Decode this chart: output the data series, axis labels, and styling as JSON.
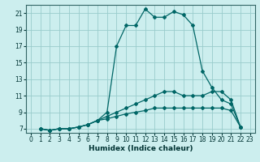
{
  "xlabel": "Humidex (Indice chaleur)",
  "background_color": "#cceeee",
  "grid_color": "#99cccc",
  "line_color": "#006666",
  "xlim": [
    -0.5,
    23.5
  ],
  "ylim": [
    6.5,
    22.0
  ],
  "xticks": [
    0,
    1,
    2,
    3,
    4,
    5,
    6,
    7,
    8,
    9,
    10,
    11,
    12,
    13,
    14,
    15,
    16,
    17,
    18,
    19,
    20,
    21,
    22,
    23
  ],
  "yticks": [
    7,
    9,
    11,
    13,
    15,
    17,
    19,
    21
  ],
  "series": [
    {
      "x": [
        1,
        2,
        3,
        4,
        5,
        6,
        7,
        8,
        9,
        10,
        11,
        12,
        13,
        14,
        15,
        16,
        17,
        18,
        19,
        20,
        21,
        22
      ],
      "y": [
        7,
        6.8,
        7,
        7,
        7.2,
        7.5,
        8.0,
        9.0,
        17.0,
        19.5,
        19.5,
        21.5,
        20.5,
        20.5,
        21.2,
        20.8,
        19.5,
        14.0,
        12.0,
        10.5,
        10.0,
        7.2
      ]
    },
    {
      "x": [
        1,
        2,
        3,
        4,
        5,
        6,
        7,
        8,
        9,
        10,
        11,
        12,
        13,
        14,
        15,
        16,
        17,
        18,
        19,
        20,
        21,
        22
      ],
      "y": [
        7,
        6.8,
        7,
        7,
        7.2,
        7.5,
        8.0,
        8.5,
        9.0,
        9.5,
        10.0,
        10.5,
        11.0,
        11.5,
        11.5,
        11.0,
        11.0,
        11.0,
        11.5,
        11.5,
        10.5,
        7.2
      ]
    },
    {
      "x": [
        1,
        2,
        3,
        4,
        5,
        6,
        7,
        8,
        9,
        10,
        11,
        12,
        13,
        14,
        15,
        16,
        17,
        18,
        19,
        20,
        21,
        22
      ],
      "y": [
        7,
        6.8,
        7,
        7,
        7.2,
        7.5,
        8.0,
        8.2,
        8.5,
        8.8,
        9.0,
        9.2,
        9.5,
        9.5,
        9.5,
        9.5,
        9.5,
        9.5,
        9.5,
        9.5,
        9.2,
        7.2
      ]
    }
  ]
}
